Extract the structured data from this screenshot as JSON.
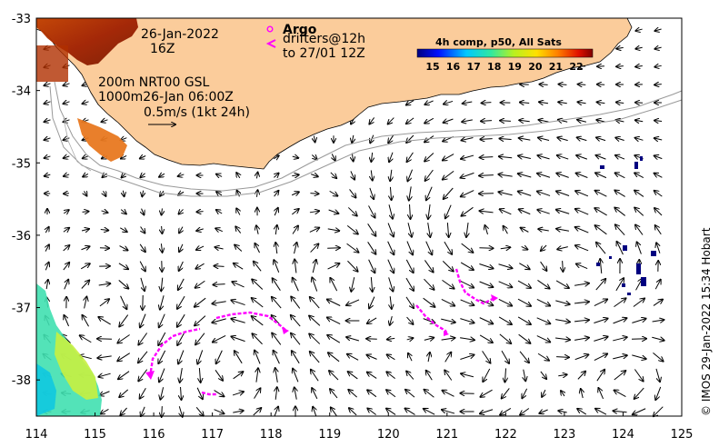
{
  "map": {
    "date_label": "26-Jan-2022",
    "time_label": "16Z",
    "altimetry_line1": "200m  NRT00 GSL",
    "altimetry_line2": "1000m26-Jan 06:00Z",
    "scale_label": "0.5m/s (1kt 24h)",
    "argo_label": "Argo",
    "drifters_line1": "drifters@12h",
    "drifters_line2": "to 27/01 12Z",
    "colorbar_title": "4h comp, p50, All Sats",
    "colorbar_ticks": [
      "15",
      "16",
      "17",
      "18",
      "19",
      "20",
      "21",
      "22"
    ],
    "credit": "© IMOS 29-Jan-2022 15:34 Hobart",
    "x_ticks": [
      "114",
      "115",
      "116",
      "117",
      "118",
      "119",
      "120",
      "121",
      "122",
      "123",
      "124",
      "125"
    ],
    "y_ticks": [
      "-33",
      "-34",
      "-35",
      "-36",
      "-37",
      "-38"
    ],
    "lon_range": [
      114,
      125
    ],
    "lat_range": [
      -38.5,
      -33
    ],
    "colors": {
      "land": "#fbcc9b",
      "drifter": "#ff00ff",
      "argo": "#ff00ff",
      "sst_cold": "#000080",
      "sst_warm": "#8b1a00"
    }
  }
}
